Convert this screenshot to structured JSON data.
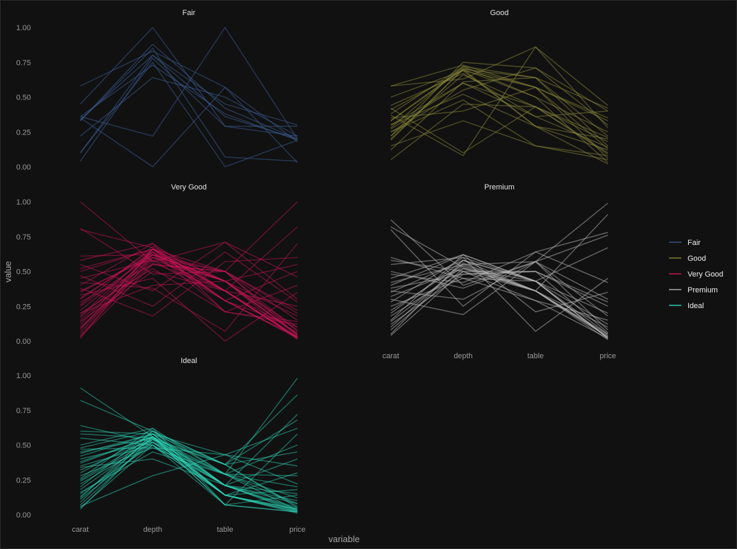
{
  "chart_data": {
    "type": "line",
    "subtype": "parallel-coordinates-faceted",
    "xlabel": "variable",
    "ylabel": "value",
    "variables": [
      "carat",
      "depth",
      "table",
      "price"
    ],
    "y_ticks": [
      "0.00",
      "0.25",
      "0.50",
      "0.75",
      "1.00"
    ],
    "ylim": [
      0,
      1
    ],
    "grid": false,
    "legend_position": "right",
    "legend_title": "",
    "facets": [
      {
        "title": "Fair",
        "color": "#3b5b8f",
        "opacity": 0.55,
        "lines": [
          [
            0.58,
            0.83,
            0.57,
            0.18
          ],
          [
            0.45,
            1.0,
            0.29,
            0.29
          ],
          [
            0.36,
            0.22,
            1.0,
            0.2
          ],
          [
            0.33,
            0.88,
            0.42,
            0.2
          ],
          [
            0.1,
            0.8,
            0.36,
            0.2
          ],
          [
            0.04,
            0.78,
            0.29,
            0.22
          ],
          [
            0.35,
            0.0,
            0.57,
            0.03
          ],
          [
            0.22,
            0.64,
            0.5,
            0.22
          ],
          [
            0.33,
            0.85,
            0.07,
            0.04
          ],
          [
            0.1,
            0.75,
            0.0,
            0.19
          ],
          [
            0.36,
            0.73,
            0.38,
            0.19
          ],
          [
            0.34,
            0.8,
            0.45,
            0.3
          ]
        ]
      },
      {
        "title": "Good",
        "color": "#8d8c3a",
        "opacity": 0.5,
        "lines": [
          [
            0.58,
            0.63,
            0.86,
            0.44
          ],
          [
            0.33,
            0.7,
            0.64,
            0.22
          ],
          [
            0.22,
            0.75,
            0.71,
            0.4
          ],
          [
            0.41,
            0.69,
            0.57,
            0.33
          ],
          [
            0.3,
            0.6,
            0.43,
            0.09
          ],
          [
            0.05,
            0.45,
            0.43,
            0.18
          ],
          [
            0.19,
            0.7,
            0.29,
            0.02
          ],
          [
            0.37,
            0.08,
            0.86,
            0.28
          ],
          [
            0.58,
            0.73,
            0.57,
            0.13
          ],
          [
            0.25,
            0.48,
            0.15,
            0.05
          ],
          [
            0.44,
            0.67,
            0.36,
            0.4
          ],
          [
            0.3,
            0.52,
            0.29,
            0.2
          ],
          [
            0.12,
            0.61,
            0.64,
            0.15
          ],
          [
            0.28,
            0.72,
            0.5,
            0.25
          ],
          [
            0.22,
            0.66,
            0.43,
            0.1
          ],
          [
            0.35,
            0.4,
            0.57,
            0.35
          ],
          [
            0.25,
            0.55,
            0.71,
            0.3
          ],
          [
            0.5,
            0.69,
            0.29,
            0.12
          ],
          [
            0.15,
            0.33,
            0.15,
            0.08
          ],
          [
            0.38,
            0.72,
            0.64,
            0.42
          ],
          [
            0.27,
            0.6,
            0.36,
            0.14
          ],
          [
            0.2,
            0.7,
            0.5,
            0.03
          ],
          [
            0.42,
            0.1,
            0.43,
            0.21
          ],
          [
            0.33,
            0.71,
            0.57,
            0.06
          ]
        ]
      },
      {
        "title": "Very Good",
        "color": "#d4145a",
        "opacity": 0.45,
        "lines": [
          [
            1.0,
            0.57,
            0.71,
            0.3
          ],
          [
            0.81,
            0.48,
            0.5,
            1.0
          ],
          [
            0.8,
            0.67,
            0.36,
            0.82
          ],
          [
            0.61,
            0.62,
            0.43,
            0.55
          ],
          [
            0.55,
            0.36,
            0.71,
            0.46
          ],
          [
            0.5,
            0.66,
            0.5,
            0.2
          ],
          [
            0.45,
            0.58,
            0.29,
            0.1
          ],
          [
            0.4,
            0.7,
            0.36,
            0.25
          ],
          [
            0.38,
            0.18,
            0.57,
            0.6
          ],
          [
            0.35,
            0.62,
            0.43,
            0.08
          ],
          [
            0.3,
            0.66,
            0.29,
            0.03
          ],
          [
            0.28,
            0.55,
            0.5,
            0.15
          ],
          [
            0.25,
            0.62,
            0.43,
            0.05
          ],
          [
            0.22,
            0.64,
            0.36,
            0.02
          ],
          [
            0.2,
            0.52,
            0.21,
            0.12
          ],
          [
            0.18,
            0.66,
            0.43,
            0.04
          ],
          [
            0.15,
            0.6,
            0.36,
            0.03
          ],
          [
            0.12,
            0.64,
            0.29,
            0.02
          ],
          [
            0.1,
            0.58,
            0.43,
            0.05
          ],
          [
            0.08,
            0.66,
            0.36,
            0.02
          ],
          [
            0.06,
            0.62,
            0.29,
            0.03
          ],
          [
            0.04,
            0.6,
            0.43,
            0.01
          ],
          [
            0.02,
            0.66,
            0.36,
            0.02
          ],
          [
            0.03,
            0.55,
            0.5,
            0.04
          ],
          [
            0.33,
            0.45,
            0.0,
            0.35
          ],
          [
            0.42,
            0.38,
            0.07,
            0.7
          ],
          [
            0.58,
            0.7,
            0.21,
            0.4
          ],
          [
            0.47,
            0.25,
            0.64,
            0.28
          ],
          [
            0.26,
            0.68,
            0.43,
            0.18
          ],
          [
            0.14,
            0.5,
            0.36,
            0.06
          ],
          [
            0.36,
            0.6,
            0.5,
            0.22
          ],
          [
            0.2,
            0.4,
            0.43,
            0.1
          ],
          [
            0.52,
            0.66,
            0.29,
            0.5
          ],
          [
            0.09,
            0.56,
            0.36,
            0.03
          ],
          [
            0.31,
            0.64,
            0.21,
            0.14
          ],
          [
            0.17,
            0.62,
            0.5,
            0.07
          ]
        ]
      },
      {
        "title": "Premium",
        "color": "#bdbdbd",
        "opacity": 0.5,
        "lines": [
          [
            0.87,
            0.4,
            0.57,
            0.99
          ],
          [
            0.82,
            0.53,
            0.36,
            0.91
          ],
          [
            0.8,
            0.25,
            0.64,
            0.78
          ],
          [
            0.6,
            0.45,
            0.43,
            0.67
          ],
          [
            0.55,
            0.6,
            0.07,
            0.45
          ],
          [
            0.5,
            0.38,
            0.57,
            0.3
          ],
          [
            0.45,
            0.62,
            0.43,
            0.2
          ],
          [
            0.42,
            0.55,
            0.36,
            0.1
          ],
          [
            0.38,
            0.48,
            0.5,
            0.25
          ],
          [
            0.35,
            0.58,
            0.43,
            0.05
          ],
          [
            0.32,
            0.52,
            0.36,
            0.03
          ],
          [
            0.28,
            0.6,
            0.43,
            0.02
          ],
          [
            0.25,
            0.45,
            0.29,
            0.15
          ],
          [
            0.22,
            0.55,
            0.57,
            0.08
          ],
          [
            0.18,
            0.5,
            0.36,
            0.04
          ],
          [
            0.15,
            0.62,
            0.43,
            0.02
          ],
          [
            0.12,
            0.48,
            0.5,
            0.06
          ],
          [
            0.1,
            0.56,
            0.36,
            0.03
          ],
          [
            0.08,
            0.52,
            0.43,
            0.02
          ],
          [
            0.05,
            0.58,
            0.36,
            0.01
          ],
          [
            0.04,
            0.5,
            0.29,
            0.02
          ],
          [
            0.3,
            0.19,
            0.57,
            0.76
          ],
          [
            0.4,
            0.62,
            0.21,
            0.35
          ],
          [
            0.48,
            0.42,
            0.64,
            0.42
          ],
          [
            0.2,
            0.58,
            0.43,
            0.12
          ],
          [
            0.58,
            0.5,
            0.5,
            0.28
          ],
          [
            0.14,
            0.54,
            0.36,
            0.05
          ],
          [
            0.36,
            0.3,
            0.57,
            0.18
          ]
        ]
      },
      {
        "title": "Ideal",
        "color": "#2fe0c0",
        "opacity": 0.45,
        "lines": [
          [
            0.91,
            0.56,
            0.29,
            0.98
          ],
          [
            0.82,
            0.6,
            0.36,
            0.86
          ],
          [
            0.64,
            0.52,
            0.21,
            0.72
          ],
          [
            0.6,
            0.58,
            0.43,
            0.62
          ],
          [
            0.58,
            0.55,
            0.36,
            0.45
          ],
          [
            0.55,
            0.5,
            0.14,
            0.3
          ],
          [
            0.5,
            0.62,
            0.29,
            0.2
          ],
          [
            0.47,
            0.48,
            0.43,
            0.35
          ],
          [
            0.45,
            0.55,
            0.21,
            0.1
          ],
          [
            0.42,
            0.58,
            0.36,
            0.05
          ],
          [
            0.4,
            0.52,
            0.29,
            0.08
          ],
          [
            0.37,
            0.56,
            0.21,
            0.15
          ],
          [
            0.35,
            0.5,
            0.14,
            0.04
          ],
          [
            0.32,
            0.54,
            0.36,
            0.06
          ],
          [
            0.3,
            0.58,
            0.21,
            0.03
          ],
          [
            0.28,
            0.48,
            0.29,
            0.12
          ],
          [
            0.25,
            0.56,
            0.14,
            0.02
          ],
          [
            0.22,
            0.52,
            0.21,
            0.05
          ],
          [
            0.2,
            0.6,
            0.29,
            0.03
          ],
          [
            0.18,
            0.55,
            0.14,
            0.02
          ],
          [
            0.15,
            0.5,
            0.21,
            0.04
          ],
          [
            0.13,
            0.56,
            0.07,
            0.02
          ],
          [
            0.11,
            0.52,
            0.14,
            0.03
          ],
          [
            0.09,
            0.58,
            0.21,
            0.02
          ],
          [
            0.07,
            0.54,
            0.14,
            0.04
          ],
          [
            0.05,
            0.5,
            0.07,
            0.02
          ],
          [
            0.04,
            0.56,
            0.14,
            0.01
          ],
          [
            0.06,
            0.28,
            0.43,
            0.22
          ],
          [
            0.26,
            0.62,
            0.07,
            0.58
          ],
          [
            0.34,
            0.4,
            0.21,
            0.4
          ],
          [
            0.48,
            0.6,
            0.36,
            0.68
          ],
          [
            0.16,
            0.45,
            0.29,
            0.28
          ],
          [
            0.38,
            0.56,
            0.07,
            0.14
          ],
          [
            0.12,
            0.6,
            0.21,
            0.08
          ],
          [
            0.24,
            0.54,
            0.29,
            0.5
          ],
          [
            0.44,
            0.58,
            0.14,
            0.18
          ]
        ]
      }
    ]
  }
}
